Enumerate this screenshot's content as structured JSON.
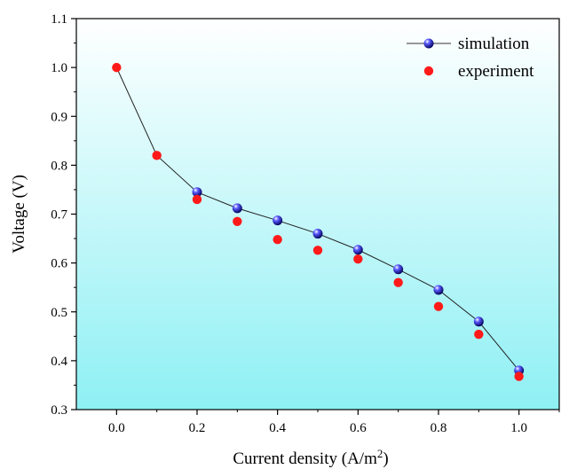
{
  "chart_data": {
    "type": "scatter",
    "xlabel": "Current density (A/m",
    "xlabel_sup": "2",
    "xlabel_close": ")",
    "ylabel": "Voltage (V)",
    "xlim": [
      -0.1,
      1.1
    ],
    "ylim": [
      0.3,
      1.1
    ],
    "x_ticks": [
      "0.0",
      "0.2",
      "0.4",
      "0.6",
      "0.8",
      "1.0"
    ],
    "x_tick_values": [
      0.0,
      0.2,
      0.4,
      0.6,
      0.8,
      1.0
    ],
    "y_ticks": [
      "0.3",
      "0.4",
      "0.5",
      "0.6",
      "0.7",
      "0.8",
      "0.9",
      "1.0",
      "1.1"
    ],
    "y_tick_values": [
      0.3,
      0.4,
      0.5,
      0.6,
      0.7,
      0.8,
      0.9,
      1.0,
      1.1
    ],
    "legend_position": "top-right",
    "grid": false,
    "series": [
      {
        "name": "simulation",
        "style": "line-with-markers",
        "color": "#1a1aa8",
        "x": [
          0.0,
          0.1,
          0.2,
          0.3,
          0.4,
          0.5,
          0.6,
          0.7,
          0.8,
          0.9,
          1.0
        ],
        "y": [
          1.0,
          0.82,
          0.745,
          0.712,
          0.687,
          0.66,
          0.627,
          0.587,
          0.545,
          0.48,
          0.38
        ]
      },
      {
        "name": "experiment",
        "style": "markers",
        "color": "#ff1a1a",
        "x": [
          0.0,
          0.1,
          0.2,
          0.3,
          0.4,
          0.5,
          0.6,
          0.7,
          0.8,
          0.9,
          1.0
        ],
        "y": [
          1.0,
          0.82,
          0.73,
          0.685,
          0.648,
          0.626,
          0.608,
          0.56,
          0.511,
          0.454,
          0.368
        ]
      }
    ],
    "background_gradient": [
      "#ffffff",
      "#8ef0f4"
    ]
  }
}
